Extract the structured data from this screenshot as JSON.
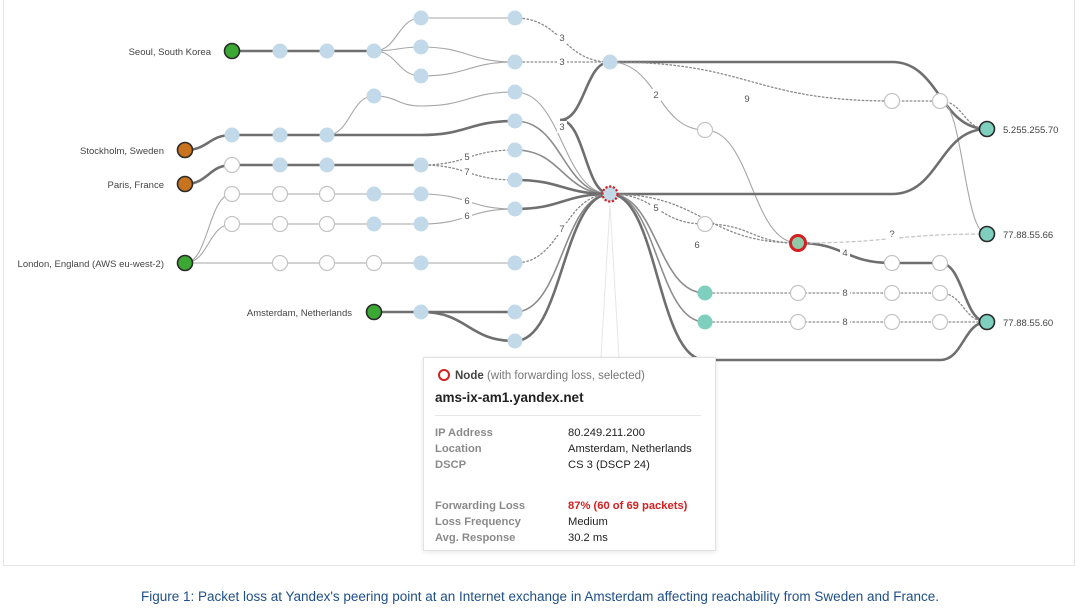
{
  "sources": [
    {
      "label": "Seoul, South Korea"
    },
    {
      "label": "Stockholm, Sweden"
    },
    {
      "label": "Paris, France"
    },
    {
      "label": "London, England (AWS eu-west-2)"
    },
    {
      "label": "Amsterdam, Netherlands"
    }
  ],
  "destinations": [
    {
      "label": "5.255.255.70"
    },
    {
      "label": "77.88.55.66"
    },
    {
      "label": "77.88.55.60"
    }
  ],
  "hop_labels": [
    "3",
    "3",
    "3",
    "2",
    "9",
    "5",
    "7",
    "6",
    "6",
    "7",
    "5",
    "6",
    "4",
    "8",
    "8",
    "?"
  ],
  "colors": {
    "source_green": "#3aa832",
    "source_orange": "#c8741e",
    "hop_blue": "#c2d9e9",
    "hop_white": "#ffffff",
    "dest_teal": "#7ecfbd",
    "loss_red": "#d42020"
  },
  "tooltip": {
    "legend_bold": "Node",
    "legend_rest": "(with forwarding loss, selected)",
    "hostname": "ams-ix-am1.yandex.net",
    "details": [
      {
        "key": "IP Address",
        "value": "80.249.211.200"
      },
      {
        "key": "Location",
        "value": "Amsterdam, Netherlands"
      },
      {
        "key": "DSCP",
        "value": "CS 3 (DSCP 24)"
      }
    ],
    "metrics": [
      {
        "key": "Forwarding Loss",
        "value": "87% (60 of 69 packets)"
      },
      {
        "key": "Loss Frequency",
        "value": "Medium"
      },
      {
        "key": "Avg. Response",
        "value": "30.2 ms"
      }
    ]
  },
  "caption": "Figure 1: Packet loss at Yandex's peering point at an Internet exchange in Amsterdam affecting reachability from Sweden and France."
}
